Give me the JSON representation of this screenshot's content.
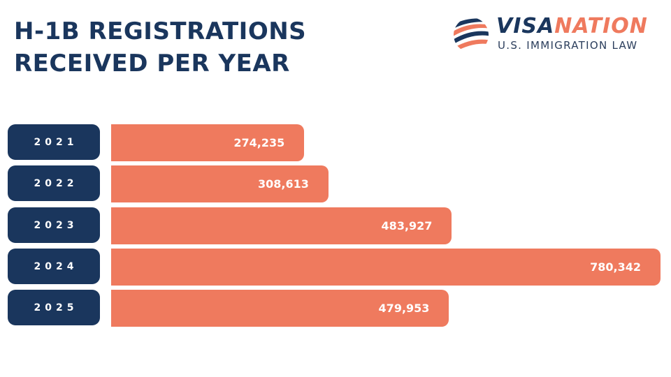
{
  "header": {
    "title_line1": "H-1B REGISTRATIONS",
    "title_line2": "RECEIVED PER YEAR"
  },
  "logo": {
    "word_a": "VISA",
    "word_b": "NATION",
    "subtitle": "U.S. IMMIGRATION LAW"
  },
  "colors": {
    "navy": "#1a365d",
    "coral": "#ef7a5e"
  },
  "chart_data": {
    "type": "bar",
    "orientation": "horizontal",
    "title": "H-1B Registrations Received Per Year",
    "categories": [
      "2021",
      "2022",
      "2023",
      "2024",
      "2025"
    ],
    "values": [
      274235,
      308613,
      483927,
      780342,
      479953
    ],
    "labels": [
      "274,235",
      "308,613",
      "483,927",
      "780,342",
      "479,953"
    ],
    "xlim": [
      0,
      780342
    ]
  }
}
